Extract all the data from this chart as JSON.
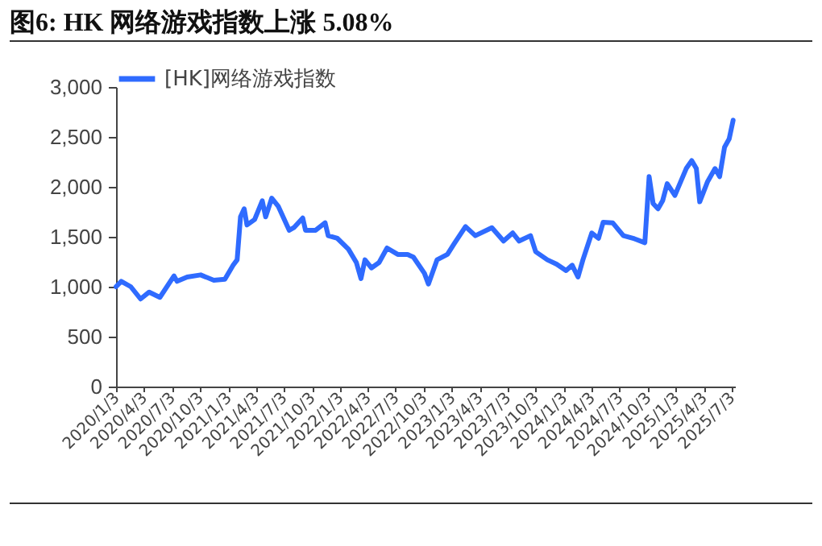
{
  "chart_data": {
    "type": "line",
    "title": "图6:  HK 网络游戏指数上涨 5.08%",
    "x": [
      "2020-01-03",
      "2020-01-20",
      "2020-02-20",
      "2020-03-23",
      "2020-04-20",
      "2020-05-25",
      "2020-07-10",
      "2020-07-20",
      "2020-08-22",
      "2020-10-05",
      "2020-11-17",
      "2020-12-23",
      "2021-01-19",
      "2021-02-01",
      "2021-02-12",
      "2021-02-24",
      "2021-03-05",
      "2021-03-30",
      "2021-04-24",
      "2021-05-05",
      "2021-05-25",
      "2021-06-15",
      "2021-07-21",
      "2021-08-05",
      "2021-09-03",
      "2021-09-12",
      "2021-10-15",
      "2021-11-15",
      "2021-11-25",
      "2021-12-25",
      "2022-01-30",
      "2022-02-25",
      "2022-03-12",
      "2022-03-25",
      "2022-04-15",
      "2022-05-10",
      "2022-06-05",
      "2022-07-10",
      "2022-08-11",
      "2022-08-30",
      "2022-10-05",
      "2022-10-18",
      "2022-11-15",
      "2022-12-19",
      "2023-01-10",
      "2023-02-16",
      "2023-03-20",
      "2023-05-13",
      "2023-06-20",
      "2023-07-20",
      "2023-08-10",
      "2023-09-16",
      "2023-10-03",
      "2023-11-10",
      "2023-12-10",
      "2024-01-10",
      "2024-01-30",
      "2024-02-18",
      "2024-03-05",
      "2024-04-03",
      "2024-04-25",
      "2024-05-10",
      "2024-06-10",
      "2024-07-15",
      "2024-08-20",
      "2024-09-23",
      "2024-10-07",
      "2024-10-20",
      "2024-11-05",
      "2024-11-20",
      "2024-12-05",
      "2024-12-30",
      "2025-02-05",
      "2025-02-23",
      "2025-03-10",
      "2025-03-21",
      "2025-04-15",
      "2025-05-10",
      "2025-05-25",
      "2025-06-10",
      "2025-06-25",
      "2025-07-08"
    ],
    "series": [
      {
        "name": "[HK]网络游戏指数",
        "color": "#2f6bff",
        "values": [
          1000,
          1053,
          1000,
          877,
          946,
          893,
          1108,
          1054,
          1097,
          1118,
          1065,
          1075,
          1215,
          1269,
          1699,
          1780,
          1618,
          1672,
          1860,
          1699,
          1887,
          1806,
          1565,
          1591,
          1688,
          1565,
          1565,
          1640,
          1511,
          1484,
          1376,
          1242,
          1081,
          1269,
          1188,
          1242,
          1387,
          1323,
          1323,
          1296,
          1134,
          1027,
          1269,
          1323,
          1430,
          1602,
          1511,
          1591,
          1457,
          1538,
          1457,
          1511,
          1350,
          1269,
          1226,
          1161,
          1215,
          1097,
          1269,
          1538,
          1484,
          1645,
          1640,
          1511,
          1480,
          1441,
          2102,
          1833,
          1780,
          1860,
          2032,
          1914,
          2183,
          2263,
          2183,
          1850,
          2048,
          2183,
          2102,
          2398,
          2479,
          2667
        ]
      }
    ],
    "ylim": [
      0,
      3000
    ],
    "yticks": [
      0,
      500,
      {
        "value": 1000,
        "label": "1,000"
      },
      {
        "value": 1500,
        "label": "1,500"
      },
      {
        "value": 2000,
        "label": "2,000"
      },
      {
        "value": 2500,
        "label": "2,500"
      },
      {
        "value": 3000,
        "label": "3,000"
      }
    ],
    "xlim": [
      "2020-01-03",
      "2025-07-14"
    ],
    "xticks": [
      {
        "value": "2020-01-03",
        "label": "2020/1/3"
      },
      {
        "value": "2020-04-03",
        "label": "2020/4/3"
      },
      {
        "value": "2020-07-03",
        "label": "2020/7/3"
      },
      {
        "value": "2020-10-03",
        "label": "2020/10/3"
      },
      {
        "value": "2021-01-03",
        "label": "2021/1/3"
      },
      {
        "value": "2021-04-03",
        "label": "2021/4/3"
      },
      {
        "value": "2021-07-03",
        "label": "2021/7/3"
      },
      {
        "value": "2021-10-03",
        "label": "2021/10/3"
      },
      {
        "value": "2022-01-03",
        "label": "2022/1/3"
      },
      {
        "value": "2022-04-03",
        "label": "2022/4/3"
      },
      {
        "value": "2022-07-03",
        "label": "2022/7/3"
      },
      {
        "value": "2022-10-03",
        "label": "2022/10/3"
      },
      {
        "value": "2023-01-03",
        "label": "2023/1/3"
      },
      {
        "value": "2023-04-03",
        "label": "2023/4/3"
      },
      {
        "value": "2023-07-03",
        "label": "2023/7/3"
      },
      {
        "value": "2023-10-03",
        "label": "2023/10/3"
      },
      {
        "value": "2024-01-03",
        "label": "2024/1/3"
      },
      {
        "value": "2024-04-03",
        "label": "2024/4/3"
      },
      {
        "value": "2024-07-03",
        "label": "2024/7/3"
      },
      {
        "value": "2024-10-03",
        "label": "2024/10/3"
      },
      {
        "value": "2025-01-03",
        "label": "2025/1/3"
      },
      {
        "value": "2025-04-03",
        "label": "2025/4/3"
      },
      {
        "value": "2025-07-03",
        "label": "2025/7/3"
      }
    ],
    "grid": false,
    "legend": "top",
    "marker": "none",
    "line_style": "solid"
  }
}
